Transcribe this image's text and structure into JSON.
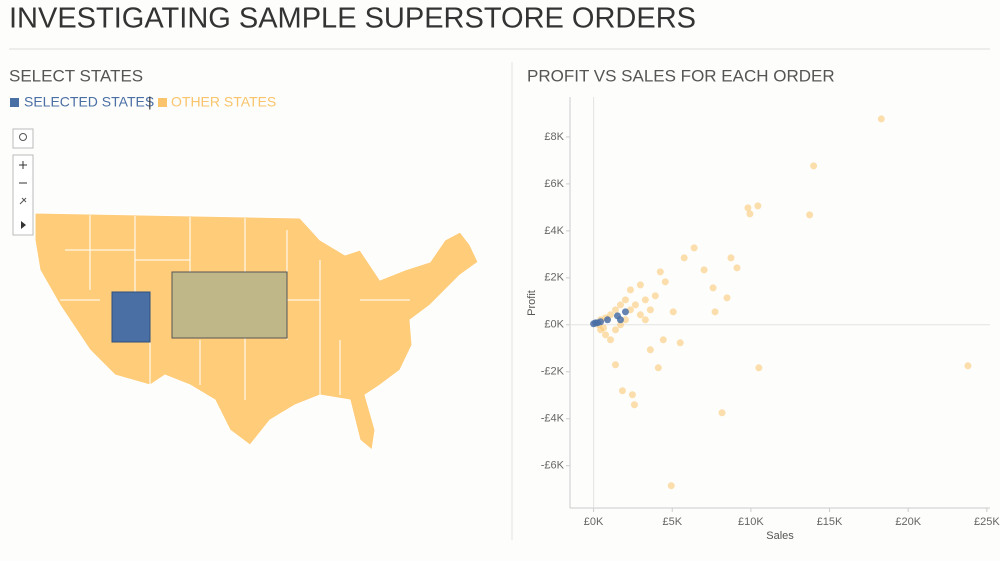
{
  "header": {
    "title": "INVESTIGATING SAMPLE SUPERSTORE ORDERS"
  },
  "map": {
    "title": "SELECT STATES",
    "legend_separator": "|"
  },
  "chart_data": {
    "type": "scatter",
    "title": "PROFIT VS SALES FOR EACH ORDER",
    "x_label": "Sales",
    "y_label": "Profit",
    "xlim": [
      -1500,
      25200
    ],
    "ylim": [
      -7800,
      9700
    ],
    "xticks": [
      {
        "value": 0,
        "label": "£0K"
      },
      {
        "value": 5000,
        "label": "£5K"
      },
      {
        "value": 10000,
        "label": "£10K"
      },
      {
        "value": 15000,
        "label": "£15K"
      },
      {
        "value": 20000,
        "label": "£20K"
      },
      {
        "value": 25000,
        "label": "£25K"
      }
    ],
    "yticks": [
      {
        "value": -6000,
        "label": "-£6K"
      },
      {
        "value": -4000,
        "label": "-£4K"
      },
      {
        "value": -2000,
        "label": "-£2K"
      },
      {
        "value": 0,
        "label": "£0K"
      },
      {
        "value": 2000,
        "label": "£2K"
      },
      {
        "value": 4000,
        "label": "£4K"
      },
      {
        "value": 6000,
        "label": "£6K"
      },
      {
        "value": 8000,
        "label": "£8K"
      }
    ],
    "series": [
      {
        "name": "OTHER STATES",
        "color": "#f9c46b",
        "x": [
          18291,
          13987,
          13734,
          9810,
          9937,
          10443,
          6392,
          8734,
          9114,
          8481,
          7595,
          7025,
          5759,
          23797,
          10506,
          8165,
          4937,
          4114,
          2468,
          2595,
          1835,
          1392,
          5506,
          4430,
          3608,
          7722,
          5063,
          4240,
          4557,
          3291,
          3924,
          443,
          759,
          1076,
          1392,
          1709,
          2025,
          2342,
          2658,
          443,
          759,
          1076,
          1392,
          1709,
          2025,
          2975,
          3291,
          3608,
          316,
          633,
          2342,
          2975
        ],
        "values": [
          8766,
          6766,
          4681,
          4979,
          4723,
          5064,
          3277,
          2851,
          2426,
          1149,
          1574,
          2340,
          2851,
          -1745,
          -1830,
          -3745,
          -6851,
          -1830,
          -2979,
          -3404,
          -2809,
          -1702,
          -766,
          -638,
          -1064,
          553,
          553,
          2255,
          1830,
          1064,
          1234,
          213,
          298,
          426,
          638,
          851,
          1064,
          638,
          851,
          -213,
          -426,
          -638,
          -213,
          0,
          213,
          426,
          213,
          638,
          0,
          -128,
          1489,
          1702
        ]
      },
      {
        "name": "SELECTED STATES",
        "color": "#4a6fa5",
        "x": [
          0,
          127,
          253,
          443,
          886,
          1709,
          2025,
          1519
        ],
        "values": [
          43,
          85,
          85,
          128,
          213,
          213,
          553,
          383
        ]
      }
    ]
  }
}
